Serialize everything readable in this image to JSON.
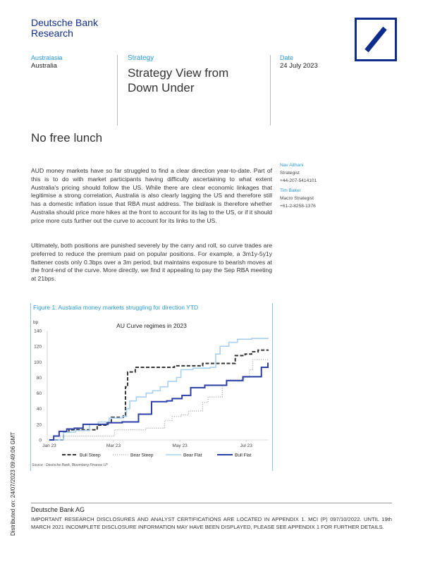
{
  "header": {
    "brand_line1": "Deutsche Bank",
    "brand_line2": "Research",
    "region": "Australasia",
    "country": "Australia",
    "category": "Strategy",
    "title_line1": "Strategy View from",
    "title_line2": "Down Under",
    "date_label": "Date",
    "date": "24 July 2023"
  },
  "headline": "No free lunch",
  "authors": [
    {
      "name": "Nav Aithani",
      "role": "Strategist",
      "phone": "+44-207-5414101"
    },
    {
      "name": "Tim Baker",
      "role": "Macro Strategist",
      "phone": "+61-2-8258-1376"
    }
  ],
  "body": [
    "AUD money markets have so far struggled to find a clear direction year-to-date. Part of this is to do with market participants having difficulty ascertaining to what extent Australia's pricing should follow the US. While there are clear economic linkages that legitimise a strong correlation, Australia is also clearly lagging the US and therefore still has a domestic inflation issue that RBA must address. The bid/ask is therefore whether Australia should price more hikes at the front to account for its lag to the US, or if it should price more cuts further out the curve to account for its links to the US.",
    "Ultimately, both positions are punished severely by the carry and roll, so curve trades are preferred to reduce the premium paid on popular positions. For example, a 3m1y-5y1y flattener costs only 0.3bps over a 3m period, but maintains exposure to bearish moves at the front-end of the curve. More directly, we find it appealing to pay the Sep RBA meeting at 21bps."
  ],
  "figure": {
    "caption": "Figure 1: Australia money markets struggling for direction YTD",
    "source": "Source : Deutsche Bank, Bloomberg Finance LP"
  },
  "chart_data": {
    "type": "line",
    "title": "AU Curve regimes in 2023",
    "ylabel": "bp",
    "xlabel": "",
    "ylim": [
      0,
      140
    ],
    "yticks": [
      "0",
      "20",
      "40",
      "60",
      "80",
      "100",
      "120",
      "140"
    ],
    "xlim": [
      "2023-01-01",
      "2023-07-21"
    ],
    "xticks": [
      {
        "label": "Jan 23",
        "date": "2023-01-01"
      },
      {
        "label": "Mar 23",
        "date": "2023-03-01"
      },
      {
        "label": "May 23",
        "date": "2023-05-01"
      },
      {
        "label": "Jul 23",
        "date": "2023-07-01"
      }
    ],
    "grid": false,
    "legend": "bottom",
    "series": [
      {
        "name": "Bull Steep",
        "color": "#333333",
        "style": "dashed",
        "points": [
          [
            "2023-01-01",
            0
          ],
          [
            "2023-01-14",
            10
          ],
          [
            "2023-01-19",
            13
          ],
          [
            "2023-02-13",
            13
          ],
          [
            "2023-02-14",
            19
          ],
          [
            "2023-02-22",
            22
          ],
          [
            "2023-02-27",
            29
          ],
          [
            "2023-03-10",
            32
          ],
          [
            "2023-03-12",
            68
          ],
          [
            "2023-03-14",
            87
          ],
          [
            "2023-03-21",
            93
          ],
          [
            "2023-04-21",
            93
          ],
          [
            "2023-04-26",
            95
          ],
          [
            "2023-05-20",
            95
          ],
          [
            "2023-05-22",
            98
          ],
          [
            "2023-06-17",
            98
          ],
          [
            "2023-06-21",
            108
          ],
          [
            "2023-06-30",
            110
          ],
          [
            "2023-07-06",
            113
          ],
          [
            "2023-07-12",
            115
          ],
          [
            "2023-07-21",
            116
          ]
        ]
      },
      {
        "name": "Bear Steep",
        "color": "#aaaaaa",
        "style": "dotted",
        "points": [
          [
            "2023-01-01",
            0
          ],
          [
            "2023-01-08",
            0
          ],
          [
            "2023-01-11",
            5
          ],
          [
            "2023-02-27",
            5
          ],
          [
            "2023-03-02",
            13
          ],
          [
            "2023-03-29",
            13
          ],
          [
            "2023-03-31",
            15
          ],
          [
            "2023-04-12",
            15
          ],
          [
            "2023-04-17",
            25
          ],
          [
            "2023-04-24",
            30
          ],
          [
            "2023-05-02",
            32
          ],
          [
            "2023-05-09",
            37
          ],
          [
            "2023-05-16",
            37
          ],
          [
            "2023-05-22",
            48
          ],
          [
            "2023-05-27",
            55
          ],
          [
            "2023-06-04",
            55
          ],
          [
            "2023-06-09",
            70
          ],
          [
            "2023-06-13",
            77
          ],
          [
            "2023-06-23",
            77
          ],
          [
            "2023-06-29",
            80
          ],
          [
            "2023-07-04",
            90
          ],
          [
            "2023-07-07",
            103
          ],
          [
            "2023-07-21",
            103
          ]
        ]
      },
      {
        "name": "Bear Flat",
        "color": "#a8d0f0",
        "style": "solid",
        "points": [
          [
            "2023-01-01",
            0
          ],
          [
            "2023-01-10",
            0
          ],
          [
            "2023-01-14",
            10
          ],
          [
            "2023-01-25",
            12
          ],
          [
            "2023-02-07",
            20
          ],
          [
            "2023-02-15",
            23
          ],
          [
            "2023-02-25",
            28
          ],
          [
            "2023-03-09",
            30
          ],
          [
            "2023-03-13",
            40
          ],
          [
            "2023-03-16",
            50
          ],
          [
            "2023-03-22",
            55
          ],
          [
            "2023-03-31",
            60
          ],
          [
            "2023-04-06",
            63
          ],
          [
            "2023-04-13",
            68
          ],
          [
            "2023-04-20",
            75
          ],
          [
            "2023-04-28",
            80
          ],
          [
            "2023-05-02",
            90
          ],
          [
            "2023-05-13",
            92
          ],
          [
            "2023-05-29",
            93
          ],
          [
            "2023-06-03",
            110
          ],
          [
            "2023-06-07",
            120
          ],
          [
            "2023-06-15",
            125
          ],
          [
            "2023-06-23",
            129
          ],
          [
            "2023-07-06",
            130
          ],
          [
            "2023-07-21",
            131
          ]
        ]
      },
      {
        "name": "Bull Flat",
        "color": "#2a3fa8",
        "style": "solid",
        "points": [
          [
            "2023-01-01",
            0
          ],
          [
            "2023-01-05",
            5
          ],
          [
            "2023-01-10",
            11
          ],
          [
            "2023-01-17",
            14
          ],
          [
            "2023-01-24",
            15
          ],
          [
            "2023-02-01",
            20
          ],
          [
            "2023-02-22",
            20
          ],
          [
            "2023-02-24",
            22
          ],
          [
            "2023-03-09",
            23
          ],
          [
            "2023-03-22",
            23
          ],
          [
            "2023-03-24",
            33
          ],
          [
            "2023-04-03",
            33
          ],
          [
            "2023-04-05",
            49
          ],
          [
            "2023-04-19",
            50
          ],
          [
            "2023-04-24",
            53
          ],
          [
            "2023-05-03",
            57
          ],
          [
            "2023-05-11",
            67
          ],
          [
            "2023-05-24",
            70
          ],
          [
            "2023-06-08",
            70
          ],
          [
            "2023-06-13",
            76
          ],
          [
            "2023-06-23",
            76
          ],
          [
            "2023-06-28",
            81
          ],
          [
            "2023-07-10",
            81
          ],
          [
            "2023-07-15",
            93
          ],
          [
            "2023-07-21",
            99
          ]
        ]
      }
    ]
  },
  "footer": {
    "company": "Deutsche Bank AG",
    "disclosure": "IMPORTANT RESEARCH DISCLOSURES AND ANALYST CERTIFICATIONS ARE LOCATED IN APPENDIX 1. MCI (P) 097/10/2022. UNTIL 19th MARCH 2021 INCOMPLETE DISCLOSURE INFORMATION MAY HAVE BEEN DISPLAYED, PLEASE SEE APPENDIX 1 FOR FURTHER DETAILS.",
    "distributed": "Distributed on: 24/07/2023 09:49:06 GMT"
  }
}
